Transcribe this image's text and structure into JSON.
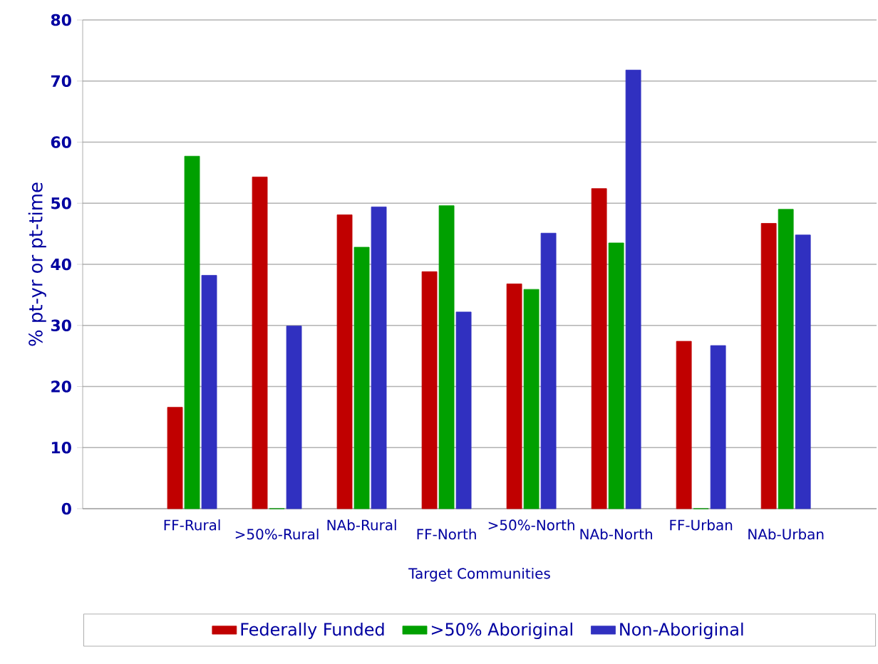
{
  "chart_data": {
    "type": "bar",
    "xlabel": "Target Communities",
    "ylabel": "% pt-yr or pt-time",
    "categories": [
      "FF-Rural",
      ">50%-Rural",
      "NAb-Rural",
      "FF-North",
      ">50%-North",
      "NAb-North",
      "FF-Urban",
      "NAb-Urban"
    ],
    "series": [
      {
        "name": "Federally Funded",
        "color": "#c00000",
        "values": [
          16.6,
          54.3,
          48.1,
          38.8,
          36.8,
          52.4,
          27.4,
          46.7
        ]
      },
      {
        "name": ">50% Aboriginal",
        "color": "#00a000",
        "values": [
          57.7,
          0,
          42.8,
          49.6,
          35.9,
          43.5,
          0,
          49.0
        ]
      },
      {
        "name": "Non-Aboriginal",
        "color": "#3030c0",
        "values": [
          38.2,
          29.9,
          49.4,
          32.2,
          45.1,
          71.8,
          26.7,
          44.8
        ]
      }
    ],
    "ylim": [
      0,
      80
    ],
    "yticks": [
      0,
      10,
      20,
      30,
      40,
      50,
      60,
      70,
      80
    ],
    "grid": "y",
    "legend": "bottom"
  }
}
